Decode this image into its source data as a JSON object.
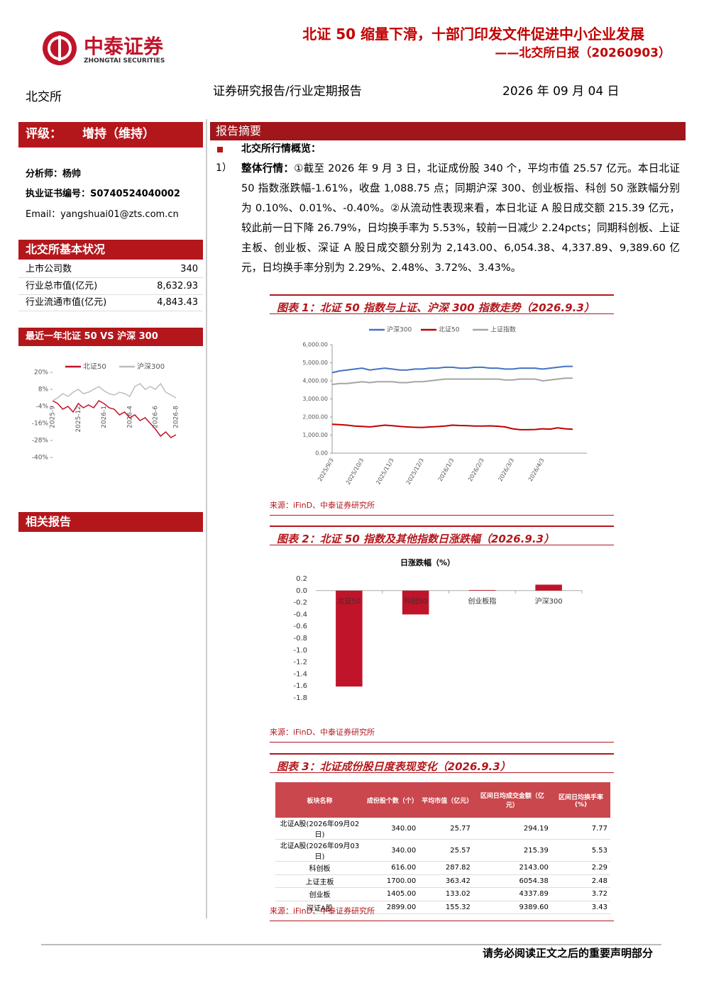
{
  "header": {
    "logo_cn": "中泰证券",
    "logo_en": "ZHONGTAI SECURITIES",
    "title": "北证 50 缩量下滑，十部门印发文件促进中小企业发展",
    "subtitle": "——北交所日报（20260903）"
  },
  "meta": {
    "market": "北交所",
    "report_type": "证券研究报告/行业定期报告",
    "date": "2026 年 09 月 04 日"
  },
  "sidebar": {
    "rating_label": "评级：",
    "rating": "增持（维持）",
    "analyst": "分析师：杨帅",
    "license": "执业证书编号：S0740524040002",
    "email": "Email：yangshuai01@zts.com.cn",
    "basics_title": "北交所基本状况",
    "basics": [
      [
        "上市公司数",
        "340"
      ],
      [
        "行业总市值(亿元)",
        "8,632.93"
      ],
      [
        "行业流通市值(亿元)",
        "4,843.43"
      ]
    ],
    "chart_title": "最近一年北证 50 VS 沪深 300",
    "related_title": "相关报告"
  },
  "sidebar_chart": {
    "chart_data": {
      "type": "line",
      "categories": [
        "2025-9",
        null,
        null,
        null,
        null,
        "2025-12",
        null,
        null,
        null,
        null,
        "2026-1",
        null,
        null,
        null,
        null,
        "2026-4",
        null,
        null,
        null,
        null,
        "2026-6",
        null,
        null,
        null,
        "2026-8"
      ],
      "series": [
        {
          "name": "北证50",
          "color": "#c0142a",
          "values": [
            0,
            -2,
            -6,
            -4,
            -8,
            -2,
            -5,
            -3,
            -5,
            0,
            -2,
            -5,
            -6,
            -10,
            -8,
            -12,
            -10,
            -14,
            -12,
            -16,
            -20,
            -25,
            -22,
            -26,
            -24
          ]
        },
        {
          "name": "沪深300",
          "color": "#bdbdbd",
          "values": [
            0,
            2,
            5,
            3,
            6,
            8,
            5,
            6,
            8,
            10,
            7,
            5,
            4,
            6,
            5,
            3,
            10,
            12,
            8,
            10,
            8,
            12,
            6,
            4,
            2
          ]
        }
      ],
      "ylim": [
        -40,
        20
      ],
      "yticks": [
        {
          "value": 20,
          "label": "20%"
        },
        {
          "value": 8,
          "label": "8%"
        },
        {
          "value": -4,
          "label": "-4%"
        },
        {
          "value": -16,
          "label": "-16%"
        },
        {
          "value": -28,
          "label": "-28%"
        },
        {
          "value": -40,
          "label": "-40%"
        }
      ],
      "grid": false
    }
  },
  "summary": {
    "section_title": "报告摘要",
    "bullet": "北交所行情概览：",
    "item_no": "1）",
    "item_lead": "整体行情：",
    "item_text": "①截至 2026 年 9 月 3 日，北证成份股 340 个，平均市值 25.57 亿元。本日北证 50 指数涨跌幅-1.61%，收盘 1,088.75 点；同期沪深 300、创业板指、科创 50 涨跌幅分别为 0.10%、0.01%、-0.40%。②从流动性表现来看，本日北证 A 股日成交额 215.39 亿元，较此前一日下降 26.79%，日均换手率为 5.53%，较前一日减少 2.24pcts；同期科创板、上证主板、创业板、深证 A 股日成交额分别为 2,143.00、6,054.38、4,337.89、9,389.60 亿元，日均换手率分别为 2.29%、2.48%、3.72%、3.43%。"
  },
  "figure1": {
    "title": "图表 1：北证 50 指数与上证、沪深 300 指数走势（2026.9.3）",
    "source": "来源：iFinD、中泰证券研究所",
    "chart_data": {
      "type": "line",
      "categories": [
        "2025/9/3",
        null,
        null,
        null,
        "2025/10/3",
        null,
        null,
        null,
        "2025/11/3",
        null,
        null,
        null,
        "2025/12/3",
        null,
        null,
        null,
        "2026/1/3",
        null,
        null,
        null,
        "2026/2/3",
        null,
        null,
        null,
        "2026/3/3",
        null,
        null,
        null,
        "2026/4/3",
        null,
        null,
        null,
        null
      ],
      "series": [
        {
          "name": "沪深300",
          "color": "#4472c4",
          "values": [
            4450,
            4550,
            4600,
            4650,
            4700,
            4600,
            4650,
            4700,
            4650,
            4600,
            4600,
            4650,
            4650,
            4700,
            4700,
            4750,
            4750,
            4700,
            4700,
            4750,
            4750,
            4700,
            4700,
            4650,
            4650,
            4700,
            4700,
            4700,
            4650,
            4700,
            4750,
            4800,
            4800
          ]
        },
        {
          "name": "北证50",
          "color": "#c00000",
          "values": [
            1600,
            1580,
            1550,
            1500,
            1480,
            1450,
            1500,
            1550,
            1520,
            1480,
            1450,
            1430,
            1420,
            1450,
            1470,
            1500,
            1550,
            1530,
            1520,
            1500,
            1500,
            1510,
            1490,
            1450,
            1350,
            1300,
            1300,
            1310,
            1350,
            1330,
            1400,
            1350,
            1320
          ]
        },
        {
          "name": "上证指数",
          "color": "#a5a5a5",
          "values": [
            3800,
            3850,
            3850,
            3900,
            3950,
            3900,
            3950,
            3950,
            3950,
            3900,
            3900,
            3950,
            3950,
            4000,
            4050,
            4100,
            4100,
            4100,
            4100,
            4100,
            4100,
            4100,
            4100,
            4050,
            4050,
            4100,
            4100,
            4100,
            4000,
            4050,
            4100,
            4150,
            4150
          ]
        }
      ],
      "ylim": [
        0,
        6000
      ],
      "yticks": [
        {
          "value": 0,
          "label": "0.00"
        },
        {
          "value": 1000,
          "label": "1,000.00"
        },
        {
          "value": 2000,
          "label": "2,000.00"
        },
        {
          "value": 3000,
          "label": "3,000.00"
        },
        {
          "value": 4000,
          "label": "4,000.00"
        },
        {
          "value": 5000,
          "label": "5,000.00"
        },
        {
          "value": 6000,
          "label": "6,000.00"
        }
      ],
      "grid": false
    }
  },
  "figure2": {
    "title": "图表 2：北证 50 指数及其他指数日涨跌幅（2026.9.3）",
    "source": "来源：iFinD、中泰证券研究所",
    "chart_data": {
      "type": "bar",
      "title": "日涨跌幅（%）",
      "categories": [
        "北证50",
        "科创50",
        "创业板指",
        "沪深300"
      ],
      "values": [
        -1.61,
        -0.4,
        0.01,
        0.1
      ],
      "color": "#c0142a",
      "ylim": [
        -1.8,
        0.2
      ],
      "yticks": [
        {
          "value": 0.2,
          "label": "0.2"
        },
        {
          "value": 0,
          "label": "0.0"
        },
        {
          "value": -0.2,
          "label": "-0.2"
        },
        {
          "value": -0.4,
          "label": "-0.4"
        },
        {
          "value": -0.6,
          "label": "-0.6"
        },
        {
          "value": -0.8,
          "label": "-0.8"
        },
        {
          "value": -1.0,
          "label": "-1.0"
        },
        {
          "value": -1.2,
          "label": "-1.2"
        },
        {
          "value": -1.4,
          "label": "-1.4"
        },
        {
          "value": -1.6,
          "label": "-1.6"
        },
        {
          "value": -1.8,
          "label": "-1.8"
        }
      ],
      "grid": false
    }
  },
  "figure3": {
    "title": "图表 3：北证成份股日度表现变化（2026.9.3）",
    "source": "来源：iFinD、中泰证券研究所",
    "table": {
      "header": [
        "板块名称",
        "成份股个数（个）",
        "平均市值（亿元）",
        "区间日均成交金额（亿元）",
        "区间日均换手率(%)"
      ],
      "rows": [
        [
          "北证A股(2026年09月02日)",
          "340.00",
          "25.77",
          "294.19",
          "7.77"
        ],
        [
          "北证A股(2026年09月03日)",
          "340.00",
          "25.57",
          "215.39",
          "5.53"
        ],
        [
          "科创板",
          "616.00",
          "287.82",
          "2143.00",
          "2.29"
        ],
        [
          "上证主板",
          "1700.00",
          "363.42",
          "6054.38",
          "2.48"
        ],
        [
          "创业板",
          "1405.00",
          "133.02",
          "4337.89",
          "3.72"
        ],
        [
          "深证A股",
          "2899.00",
          "155.32",
          "9389.60",
          "3.43"
        ]
      ]
    }
  },
  "footer": {
    "disclaimer": "请务必阅读正文之后的重要声明部分"
  }
}
